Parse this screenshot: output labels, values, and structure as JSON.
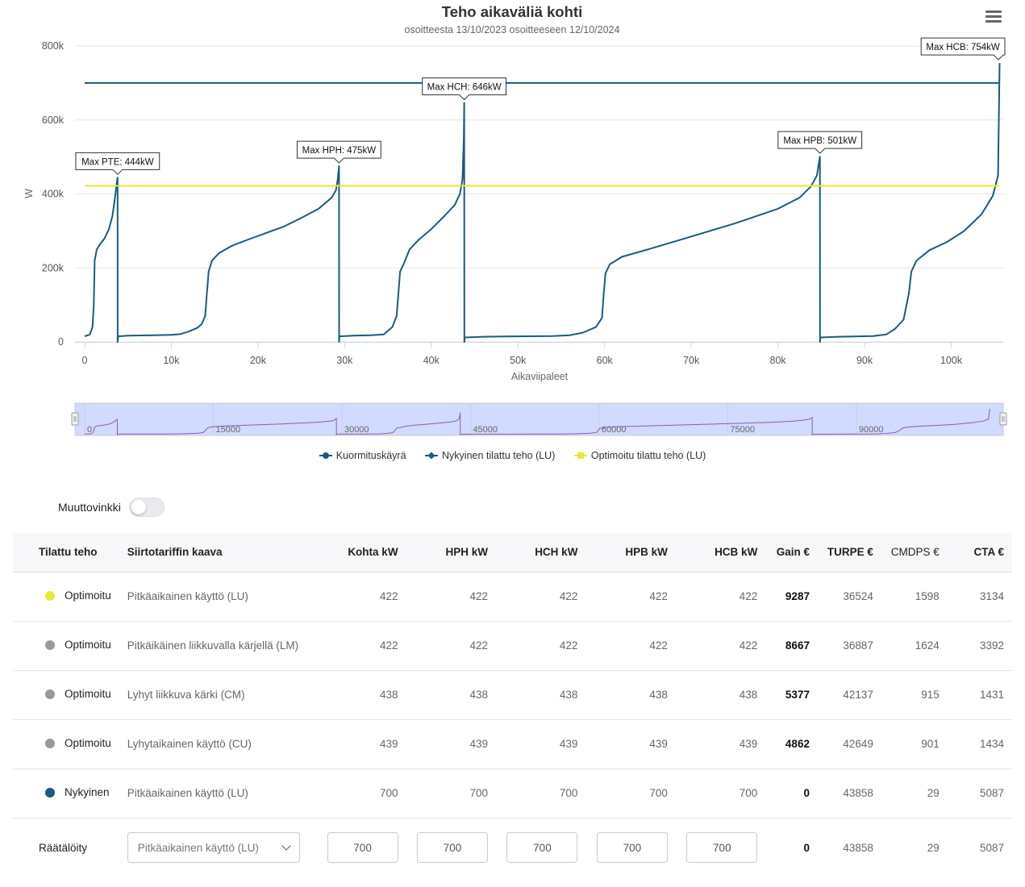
{
  "chart_data": {
    "type": "line",
    "title": "Teho aikaväliä kohti",
    "subtitle": "osoitteesta 13/10/2023 osoitteeseen 12/10/2024",
    "xlabel": "Aikaviipaleet",
    "ylabel": "W",
    "xlim": [
      0,
      106000
    ],
    "ylim": [
      0,
      800000
    ],
    "x_ticks": [
      0,
      10000,
      20000,
      30000,
      40000,
      50000,
      60000,
      70000,
      80000,
      90000,
      100000
    ],
    "x_tick_labels": [
      "0",
      "10k",
      "20k",
      "30k",
      "40k",
      "50k",
      "60k",
      "70k",
      "80k",
      "90k",
      "100k"
    ],
    "y_ticks": [
      0,
      200000,
      400000,
      600000,
      800000
    ],
    "y_tick_labels": [
      "0",
      "200k",
      "400k",
      "600k",
      "800k"
    ],
    "grid": true,
    "legend_position": "bottom-center",
    "series": [
      {
        "name": "Kuormituskäyrä",
        "color": "#1a5b7e",
        "marker": "circle",
        "points": [
          [
            0,
            15000
          ],
          [
            600,
            20000
          ],
          [
            900,
            40000
          ],
          [
            1050,
            100000
          ],
          [
            1150,
            220000
          ],
          [
            1400,
            250000
          ],
          [
            1800,
            265000
          ],
          [
            2300,
            280000
          ],
          [
            2800,
            305000
          ],
          [
            3200,
            340000
          ],
          [
            3500,
            390000
          ],
          [
            3700,
            430000
          ],
          [
            3800,
            444000
          ],
          [
            3810,
            0
          ],
          [
            3850,
            15000
          ],
          [
            5000,
            17000
          ],
          [
            8000,
            18000
          ],
          [
            10000,
            19000
          ],
          [
            11000,
            21000
          ],
          [
            12000,
            28000
          ],
          [
            13000,
            38000
          ],
          [
            13500,
            48000
          ],
          [
            13900,
            70000
          ],
          [
            14100,
            130000
          ],
          [
            14300,
            190000
          ],
          [
            14700,
            220000
          ],
          [
            15500,
            240000
          ],
          [
            17000,
            260000
          ],
          [
            19000,
            278000
          ],
          [
            21000,
            295000
          ],
          [
            23000,
            312000
          ],
          [
            25000,
            335000
          ],
          [
            27000,
            360000
          ],
          [
            28500,
            390000
          ],
          [
            29000,
            410000
          ],
          [
            29200,
            440000
          ],
          [
            29350,
            475000
          ],
          [
            29360,
            0
          ],
          [
            29400,
            15000
          ],
          [
            31000,
            17000
          ],
          [
            33000,
            18000
          ],
          [
            34500,
            20000
          ],
          [
            35500,
            40000
          ],
          [
            36000,
            70000
          ],
          [
            36200,
            130000
          ],
          [
            36400,
            190000
          ],
          [
            36800,
            210000
          ],
          [
            37500,
            250000
          ],
          [
            38500,
            275000
          ],
          [
            40000,
            305000
          ],
          [
            41500,
            340000
          ],
          [
            42700,
            370000
          ],
          [
            43300,
            400000
          ],
          [
            43600,
            440000
          ],
          [
            43750,
            550000
          ],
          [
            43800,
            646000
          ],
          [
            43810,
            0
          ],
          [
            43850,
            12000
          ],
          [
            46000,
            14000
          ],
          [
            50000,
            15000
          ],
          [
            54000,
            16000
          ],
          [
            56000,
            18000
          ],
          [
            57500,
            25000
          ],
          [
            59000,
            40000
          ],
          [
            59700,
            65000
          ],
          [
            59900,
            130000
          ],
          [
            60100,
            185000
          ],
          [
            60600,
            210000
          ],
          [
            62000,
            230000
          ],
          [
            65000,
            250000
          ],
          [
            70000,
            285000
          ],
          [
            75000,
            320000
          ],
          [
            80000,
            360000
          ],
          [
            82500,
            390000
          ],
          [
            83800,
            420000
          ],
          [
            84500,
            450000
          ],
          [
            84850,
            501000
          ],
          [
            84860,
            0
          ],
          [
            84900,
            12000
          ],
          [
            87000,
            14000
          ],
          [
            91000,
            16000
          ],
          [
            92500,
            20000
          ],
          [
            93500,
            35000
          ],
          [
            94500,
            60000
          ],
          [
            95100,
            130000
          ],
          [
            95400,
            190000
          ],
          [
            96000,
            220000
          ],
          [
            97500,
            248000
          ],
          [
            99500,
            270000
          ],
          [
            101500,
            300000
          ],
          [
            103500,
            345000
          ],
          [
            104800,
            395000
          ],
          [
            105400,
            450000
          ],
          [
            105580,
            754000
          ]
        ],
        "labels": [
          {
            "x": 3800,
            "y": 444000,
            "text": "Max PTE: 444kW"
          },
          {
            "x": 29350,
            "y": 475000,
            "text": "Max HPH: 475kW"
          },
          {
            "x": 43800,
            "y": 646000,
            "text": "Max HCH: 646kW"
          },
          {
            "x": 84850,
            "y": 501000,
            "text": "Max HPB: 501kW"
          },
          {
            "x": 105580,
            "y": 754000,
            "text": "Max HCB: 754kW"
          }
        ]
      },
      {
        "name": "Nykyinen tilattu teho (LU)",
        "color": "#1a5b7e",
        "marker": "diamond",
        "points": [
          [
            0,
            700000
          ],
          [
            105580,
            700000
          ]
        ]
      },
      {
        "name": "Optimoitu tilattu teho (LU)",
        "color": "#e8e838",
        "marker": "square",
        "points": [
          [
            0,
            422000
          ],
          [
            105580,
            422000
          ]
        ]
      }
    ],
    "navigator": {
      "tick_labels": [
        "0",
        "15000",
        "30000",
        "45000",
        "60000",
        "75000",
        "90000"
      ],
      "ticks": [
        0,
        15000,
        30000,
        45000,
        60000,
        75000,
        90000
      ]
    }
  },
  "toggle": {
    "label": "Muuttovinkki",
    "on": false
  },
  "table": {
    "headers": {
      "ordered": "Tilattu teho",
      "formula": "Siirtotariffin kaava",
      "kohta": "Kohta kW",
      "hph": "HPH kW",
      "hch": "HCH kW",
      "hpb": "HPB kW",
      "hcb": "HCB kW",
      "gain": "Gain €",
      "turpe": "TURPE €",
      "cmdps": "CMDPS €",
      "cta": "CTA €"
    },
    "rows": [
      {
        "dot": "#e8e838",
        "name": "Optimoitu",
        "formula": "Pitkäaikainen käyttö (LU)",
        "kohta": "422",
        "hph": "422",
        "hch": "422",
        "hpb": "422",
        "hcb": "422",
        "gain": "9287",
        "turpe": "36524",
        "cmdps": "1598",
        "cta": "3134"
      },
      {
        "dot": "#999999",
        "name": "Optimoitu",
        "formula": "Pitkäikäinen liikkuvalla kärjellä (LM)",
        "kohta": "422",
        "hph": "422",
        "hch": "422",
        "hpb": "422",
        "hcb": "422",
        "gain": "8667",
        "turpe": "36887",
        "cmdps": "1624",
        "cta": "3392"
      },
      {
        "dot": "#999999",
        "name": "Optimoitu",
        "formula": "Lyhyt liikkuva kärki (CM)",
        "kohta": "438",
        "hph": "438",
        "hch": "438",
        "hpb": "438",
        "hcb": "438",
        "gain": "5377",
        "turpe": "42137",
        "cmdps": "915",
        "cta": "1431"
      },
      {
        "dot": "#999999",
        "name": "Optimoitu",
        "formula": "Lyhytaikainen käyttö (CU)",
        "kohta": "439",
        "hph": "439",
        "hch": "439",
        "hpb": "439",
        "hcb": "439",
        "gain": "4862",
        "turpe": "42649",
        "cmdps": "901",
        "cta": "1434"
      },
      {
        "dot": "#1a5b7e",
        "name": "Nykyinen",
        "formula": "Pitkäaikainen käyttö (LU)",
        "kohta": "700",
        "hph": "700",
        "hch": "700",
        "hpb": "700",
        "hcb": "700",
        "gain": "0",
        "turpe": "43858",
        "cmdps": "29",
        "cta": "5087"
      }
    ],
    "custom": {
      "name": "Räätälöity",
      "formula": "Pitkäaikainen käyttö (LU)",
      "kohta": "700",
      "hph": "700",
      "hch": "700",
      "hpb": "700",
      "hcb": "700",
      "gain": "0",
      "turpe": "43858",
      "cmdps": "29",
      "cta": "5087"
    }
  }
}
